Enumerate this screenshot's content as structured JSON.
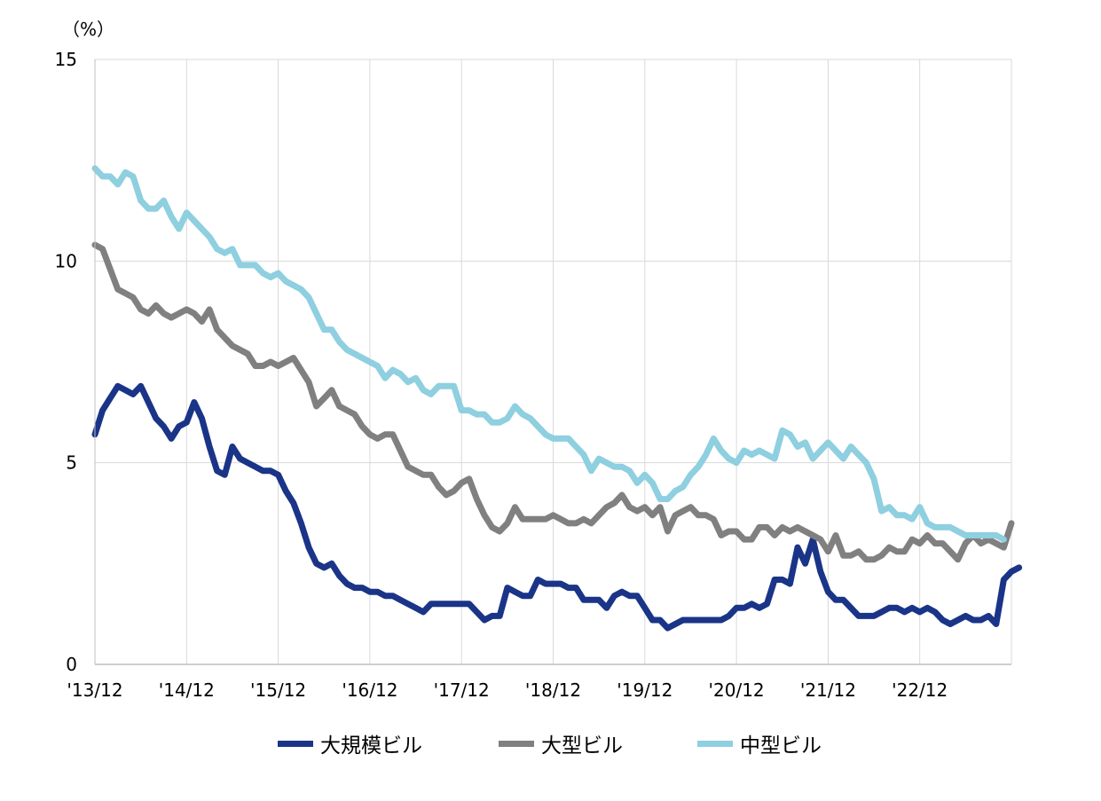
{
  "chart_data": {
    "type": "line",
    "unit_label": "（%）",
    "ylim": [
      0,
      15
    ],
    "yticks": [
      0,
      5,
      10,
      15
    ],
    "grid": true,
    "x_tick_labels": [
      "'13/12",
      "'14/12",
      "'15/12",
      "'16/12",
      "'17/12",
      "'18/12",
      "'19/12",
      "'20/12",
      "'21/12",
      "'22/12"
    ],
    "x_start": "2013-12",
    "n_months": 120,
    "legend_position": "bottom",
    "series": [
      {
        "name": "大規模ビル",
        "color": "#1a3488",
        "values": [
          5.7,
          6.3,
          6.6,
          6.9,
          6.8,
          6.7,
          6.9,
          6.5,
          6.1,
          5.9,
          5.6,
          5.9,
          6.0,
          6.5,
          6.1,
          5.4,
          4.8,
          4.7,
          5.4,
          5.1,
          5.0,
          4.9,
          4.8,
          4.8,
          4.7,
          4.3,
          4.0,
          3.5,
          2.9,
          2.5,
          2.4,
          2.5,
          2.2,
          2.0,
          1.9,
          1.9,
          1.8,
          1.8,
          1.7,
          1.7,
          1.6,
          1.5,
          1.4,
          1.3,
          1.5,
          1.5,
          1.5,
          1.5,
          1.5,
          1.5,
          1.3,
          1.1,
          1.2,
          1.2,
          1.9,
          1.8,
          1.7,
          1.7,
          2.1,
          2.0,
          2.0,
          2.0,
          1.9,
          1.9,
          1.6,
          1.6,
          1.6,
          1.4,
          1.7,
          1.8,
          1.7,
          1.7,
          1.4,
          1.1,
          1.1,
          0.9,
          1.0,
          1.1,
          1.1,
          1.1,
          1.1,
          1.1,
          1.1,
          1.2,
          1.4,
          1.4,
          1.5,
          1.4,
          1.5,
          2.1,
          2.1,
          2.0,
          2.9,
          2.5,
          3.1,
          2.3,
          1.8,
          1.6,
          1.6,
          1.4,
          1.2,
          1.2,
          1.2,
          1.3,
          1.4,
          1.4,
          1.3,
          1.4,
          1.3,
          1.4,
          1.3,
          1.1,
          1.0,
          1.1,
          1.2,
          1.1,
          1.1,
          1.2,
          1.0,
          2.1,
          2.3,
          2.4
        ]
      },
      {
        "name": "大型ビル",
        "color": "#808080",
        "values": [
          10.4,
          10.3,
          9.8,
          9.3,
          9.2,
          9.1,
          8.8,
          8.7,
          8.9,
          8.7,
          8.6,
          8.7,
          8.8,
          8.7,
          8.5,
          8.8,
          8.3,
          8.1,
          7.9,
          7.8,
          7.7,
          7.4,
          7.4,
          7.5,
          7.4,
          7.5,
          7.6,
          7.3,
          7.0,
          6.4,
          6.6,
          6.8,
          6.4,
          6.3,
          6.2,
          5.9,
          5.7,
          5.6,
          5.7,
          5.7,
          5.3,
          4.9,
          4.8,
          4.7,
          4.7,
          4.4,
          4.2,
          4.3,
          4.5,
          4.6,
          4.1,
          3.7,
          3.4,
          3.3,
          3.5,
          3.9,
          3.6,
          3.6,
          3.6,
          3.6,
          3.7,
          3.6,
          3.5,
          3.5,
          3.6,
          3.5,
          3.7,
          3.9,
          4.0,
          4.2,
          3.9,
          3.8,
          3.9,
          3.7,
          3.9,
          3.3,
          3.7,
          3.8,
          3.9,
          3.7,
          3.7,
          3.6,
          3.2,
          3.3,
          3.3,
          3.1,
          3.1,
          3.4,
          3.4,
          3.2,
          3.4,
          3.3,
          3.4,
          3.3,
          3.2,
          3.1,
          2.8,
          3.2,
          2.7,
          2.7,
          2.8,
          2.6,
          2.6,
          2.7,
          2.9,
          2.8,
          2.8,
          3.1,
          3.0,
          3.2,
          3.0,
          3.0,
          2.8,
          2.6,
          3.0,
          3.2,
          3.0,
          3.1,
          3.0,
          2.9,
          3.5
        ]
      },
      {
        "name": "中型ビル",
        "color": "#8ecfe0",
        "values": [
          12.3,
          12.1,
          12.1,
          11.9,
          12.2,
          12.1,
          11.5,
          11.3,
          11.3,
          11.5,
          11.1,
          10.8,
          11.2,
          11.0,
          10.8,
          10.6,
          10.3,
          10.2,
          10.3,
          9.9,
          9.9,
          9.9,
          9.7,
          9.6,
          9.7,
          9.5,
          9.4,
          9.3,
          9.1,
          8.7,
          8.3,
          8.3,
          8.0,
          7.8,
          7.7,
          7.6,
          7.5,
          7.4,
          7.1,
          7.3,
          7.2,
          7.0,
          7.1,
          6.8,
          6.7,
          6.9,
          6.9,
          6.9,
          6.3,
          6.3,
          6.2,
          6.2,
          6.0,
          6.0,
          6.1,
          6.4,
          6.2,
          6.1,
          5.9,
          5.7,
          5.6,
          5.6,
          5.6,
          5.4,
          5.2,
          4.8,
          5.1,
          5.0,
          4.9,
          4.9,
          4.8,
          4.5,
          4.7,
          4.5,
          4.1,
          4.1,
          4.3,
          4.4,
          4.7,
          4.9,
          5.2,
          5.6,
          5.3,
          5.1,
          5.0,
          5.3,
          5.2,
          5.3,
          5.2,
          5.1,
          5.8,
          5.7,
          5.4,
          5.5,
          5.1,
          5.3,
          5.5,
          5.3,
          5.1,
          5.4,
          5.2,
          5.0,
          4.6,
          3.8,
          3.9,
          3.7,
          3.7,
          3.6,
          3.9,
          3.5,
          3.4,
          3.4,
          3.4,
          3.3,
          3.2,
          3.2,
          3.2,
          3.2,
          3.2,
          3.1
        ]
      }
    ]
  }
}
